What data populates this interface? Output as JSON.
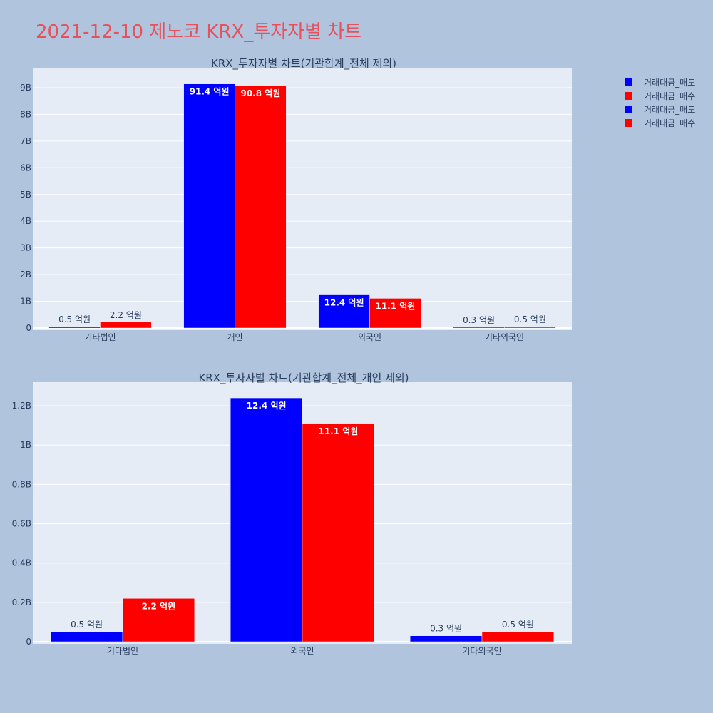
{
  "page_title": "2021-12-10 제노코 KRX_투자자별 차트",
  "legend": [
    {
      "label": "거래대금_매도",
      "color": "#0000ff"
    },
    {
      "label": "거래대금_매수",
      "color": "#ff0000"
    },
    {
      "label": "거래대금_매도",
      "color": "#0000ff"
    },
    {
      "label": "거래대금_매수",
      "color": "#ff0000"
    }
  ],
  "chart_data": [
    {
      "type": "bar",
      "title": "KRX_투자자별 차트(기관합계_전체 제외)",
      "categories": [
        "기타법인",
        "개인",
        "외국인",
        "기타외국인"
      ],
      "series": [
        {
          "name": "거래대금_매도",
          "color": "#0000ff",
          "values": [
            50000000,
            9140000000,
            1240000000,
            30000000
          ],
          "labels": [
            "0.5 억원",
            "91.4 억원",
            "12.4 억원",
            "0.3 억원"
          ]
        },
        {
          "name": "거래대금_매수",
          "color": "#ff0000",
          "values": [
            220000000,
            9080000000,
            1110000000,
            50000000
          ],
          "labels": [
            "2.2 억원",
            "90.8 억원",
            "11.1 억원",
            "0.5 억원"
          ]
        }
      ],
      "ylim": [
        0,
        9720000000
      ],
      "yticks": [
        0,
        1000000000,
        2000000000,
        3000000000,
        4000000000,
        5000000000,
        6000000000,
        7000000000,
        8000000000,
        9000000000
      ],
      "ytick_labels": [
        "0",
        "1B",
        "2B",
        "3B",
        "4B",
        "5B",
        "6B",
        "7B",
        "8B",
        "9B"
      ],
      "grid": true,
      "legend_position": "top-right"
    },
    {
      "type": "bar",
      "title": "KRX_투자자별 차트(기관합계_전체_개인 제외)",
      "categories": [
        "기타법인",
        "외국인",
        "기타외국인"
      ],
      "series": [
        {
          "name": "거래대금_매도",
          "color": "#0000ff",
          "values": [
            50000000,
            1240000000,
            30000000
          ],
          "labels": [
            "0.5 억원",
            "12.4 억원",
            "0.3 억원"
          ]
        },
        {
          "name": "거래대금_매수",
          "color": "#ff0000",
          "values": [
            220000000,
            1110000000,
            50000000
          ],
          "labels": [
            "2.2 억원",
            "11.1 억원",
            "0.5 억원"
          ]
        }
      ],
      "ylim": [
        0,
        1320000000
      ],
      "yticks": [
        0,
        200000000,
        400000000,
        600000000,
        800000000,
        1000000000,
        1200000000
      ],
      "ytick_labels": [
        "0",
        "0.2B",
        "0.4B",
        "0.6B",
        "0.8B",
        "1B",
        "1.2B"
      ],
      "grid": true,
      "legend_position": "top-right"
    }
  ]
}
